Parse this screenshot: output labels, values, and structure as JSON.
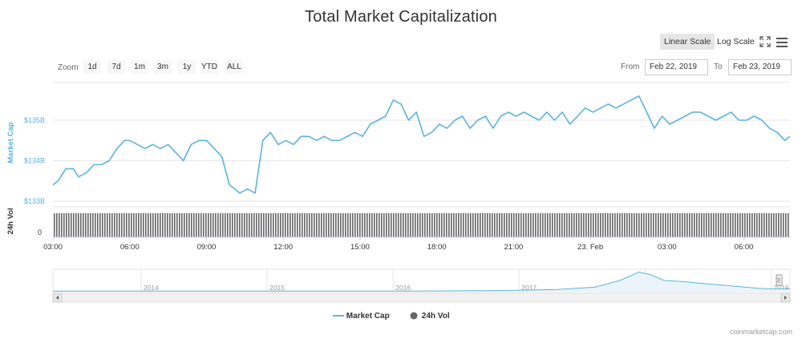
{
  "title": "Total Market Capitalization",
  "scale": {
    "linear_label": "Linear Scale",
    "log_label": "Log Scale",
    "active": "linear"
  },
  "icons": {
    "fullscreen": "fullscreen-icon",
    "menu": "hamburger-menu-icon"
  },
  "zoom": {
    "label": "Zoom",
    "buttons": [
      "1d",
      "7d",
      "1m",
      "3m",
      "1y",
      "YTD",
      "ALL"
    ]
  },
  "range": {
    "from_label": "From",
    "from_value": "Feb 22, 2019",
    "to_label": "To",
    "to_value": "Feb 23, 2019"
  },
  "legend": {
    "market_cap": "Market Cap",
    "volume": "24h Vol"
  },
  "credit": "coinmarketcap.com",
  "colors": {
    "line": "#5ab4dc",
    "volume": "#666666",
    "grid": "#e6e6e6",
    "axis_label": "#5ab4dc",
    "navigator_fill": "#eaf4fa"
  },
  "chart_data": {
    "type": "line",
    "title": "Total Market Capitalization",
    "ylabel": "Market Cap",
    "ylabel_secondary": "24h Vol",
    "y_ticks": [
      "$133B",
      "$134B",
      "$135B"
    ],
    "y_tick_values": [
      133,
      134,
      135
    ],
    "ylim": [
      133,
      136
    ],
    "volume_tick": "0",
    "x_ticks": [
      "03:00",
      "06:00",
      "09:00",
      "12:00",
      "15:00",
      "18:00",
      "21:00",
      "23. Feb",
      "03:00",
      "06:00"
    ],
    "x_tick_hours": [
      3,
      6,
      9,
      12,
      15,
      18,
      21,
      24,
      27,
      30
    ],
    "xlim_hours": [
      3,
      31.8
    ],
    "series": [
      {
        "name": "Market Cap",
        "unit": "USD billions",
        "x_hours": [
          3.0,
          3.2,
          3.5,
          3.8,
          4.0,
          4.3,
          4.6,
          4.9,
          5.2,
          5.5,
          5.8,
          6.0,
          6.3,
          6.6,
          6.9,
          7.2,
          7.5,
          7.8,
          8.1,
          8.4,
          8.7,
          9.0,
          9.3,
          9.6,
          9.9,
          10.1,
          10.3,
          10.6,
          10.9,
          11.2,
          11.5,
          11.8,
          12.1,
          12.4,
          12.7,
          13.0,
          13.3,
          13.6,
          13.9,
          14.2,
          14.5,
          14.8,
          15.1,
          15.4,
          15.7,
          16.0,
          16.3,
          16.6,
          16.9,
          17.2,
          17.5,
          17.8,
          18.1,
          18.4,
          18.7,
          19.0,
          19.3,
          19.6,
          19.9,
          20.2,
          20.5,
          20.8,
          21.1,
          21.4,
          21.7,
          22.0,
          22.3,
          22.6,
          22.9,
          23.2,
          23.5,
          23.8,
          24.1,
          24.4,
          24.7,
          25.0,
          25.3,
          25.6,
          25.9,
          26.2,
          26.5,
          26.8,
          27.1,
          27.4,
          27.7,
          28.0,
          28.3,
          28.6,
          28.9,
          29.2,
          29.5,
          29.8,
          30.1,
          30.4,
          30.7,
          31.0,
          31.3,
          31.6,
          31.8
        ],
        "values": [
          133.4,
          133.5,
          133.8,
          133.8,
          133.6,
          133.7,
          133.9,
          133.9,
          134.0,
          134.3,
          134.5,
          134.5,
          134.4,
          134.3,
          134.4,
          134.3,
          134.4,
          134.2,
          134.0,
          134.4,
          134.5,
          134.5,
          134.3,
          134.1,
          133.4,
          133.3,
          133.2,
          133.3,
          133.2,
          134.5,
          134.7,
          134.4,
          134.5,
          134.4,
          134.6,
          134.6,
          134.5,
          134.6,
          134.5,
          134.5,
          134.6,
          134.7,
          134.6,
          134.9,
          135.0,
          135.1,
          135.5,
          135.4,
          135.0,
          135.2,
          134.6,
          134.7,
          134.9,
          134.8,
          135.0,
          135.1,
          134.8,
          135.0,
          135.1,
          134.8,
          135.1,
          135.2,
          135.1,
          135.2,
          135.1,
          135.0,
          135.2,
          135.0,
          135.2,
          134.9,
          135.1,
          135.3,
          135.2,
          135.3,
          135.4,
          135.3,
          135.4,
          135.5,
          135.6,
          135.2,
          134.8,
          135.1,
          134.9,
          135.0,
          135.1,
          135.2,
          135.2,
          135.1,
          135.0,
          135.1,
          135.2,
          135.0,
          135.0,
          135.1,
          135.0,
          134.8,
          134.7,
          134.5,
          134.6
        ]
      },
      {
        "name": "24h Vol",
        "values": "uniform bars near top of volume panel"
      }
    ],
    "navigator": {
      "x_ticks": [
        "2014",
        "2015",
        "2016",
        "2017",
        "2018",
        "2019"
      ],
      "x_tick_years": [
        2014,
        2015,
        2016,
        2017,
        2018,
        2019
      ],
      "xlim_years": [
        2013.3,
        2019.15
      ],
      "x_years": [
        2013.3,
        2014.0,
        2015.0,
        2016.0,
        2016.9,
        2017.3,
        2017.6,
        2017.8,
        2017.95,
        2018.05,
        2018.15,
        2018.3,
        2018.5,
        2018.7,
        2018.9,
        2019.0,
        2019.15
      ],
      "values": [
        1,
        1,
        1,
        1,
        2,
        4,
        8,
        20,
        35,
        30,
        20,
        18,
        14,
        10,
        6,
        5,
        5
      ]
    }
  }
}
